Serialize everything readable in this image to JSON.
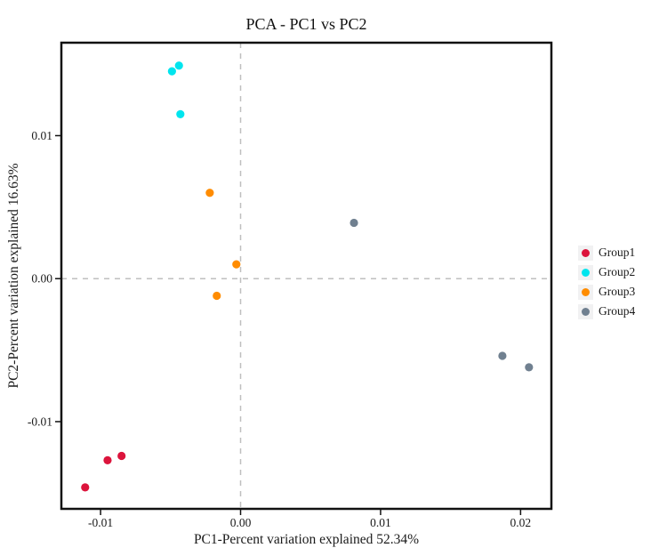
{
  "figure": {
    "background": "#FFFFFF",
    "frame_color": "#111111",
    "text_color": "#1A1A1A",
    "reference_line_color": "#BFBFBF",
    "legend_key_background": "#F1F1F2"
  },
  "chart_data": {
    "type": "scatter",
    "title": "PCA - PC1 vs PC2",
    "xlabel": "PC1-Percent variation explained 52.34%",
    "ylabel": "PC2-Percent variation explained 16.63%",
    "xlim": [
      -0.0128,
      0.0222
    ],
    "ylim": [
      -0.0161,
      0.0165
    ],
    "xticks": {
      "values": [
        -0.01,
        0,
        0.01,
        0.02
      ],
      "labels": [
        "-0.01",
        "0.00",
        "0.01",
        "0.02"
      ]
    },
    "yticks": {
      "values": [
        -0.01,
        0,
        0.01
      ],
      "labels": [
        "-0.01",
        "0.00",
        "0.01"
      ]
    },
    "grid": false,
    "legend_position": "right-center",
    "marker": {
      "shape": "circle",
      "radius": 4.6
    },
    "reference_lines": [
      {
        "orientation": "vertical",
        "at": 0,
        "style": "dashed"
      },
      {
        "orientation": "horizontal",
        "at": 0,
        "style": "dashed"
      }
    ],
    "series": [
      {
        "name": "Group1",
        "color": "#DC143C",
        "points": [
          [
            -0.0111,
            -0.0146
          ],
          [
            -0.0095,
            -0.0127
          ],
          [
            -0.0085,
            -0.0124
          ]
        ]
      },
      {
        "name": "Group2",
        "color": "#00E5EE",
        "points": [
          [
            -0.0049,
            0.0145
          ],
          [
            -0.0044,
            0.0149
          ],
          [
            -0.0043,
            0.0115
          ]
        ]
      },
      {
        "name": "Group3",
        "color": "#FF8C00",
        "points": [
          [
            -0.0022,
            0.006
          ],
          [
            -0.0003,
            0.001
          ],
          [
            -0.0017,
            -0.0012
          ]
        ]
      },
      {
        "name": "Group4",
        "color": "#708090",
        "points": [
          [
            0.0081,
            0.0039
          ],
          [
            0.0187,
            -0.0054
          ],
          [
            0.0206,
            -0.0062
          ]
        ]
      }
    ]
  }
}
